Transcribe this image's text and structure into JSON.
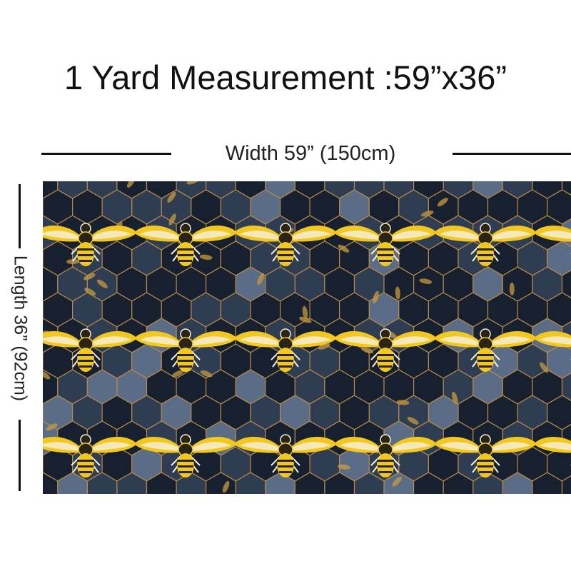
{
  "title": "1 Yard Measurement :59”x36”",
  "width_label": "Width 59”  (150cm)",
  "length_label": "Length 36”  (92cm)",
  "fabric": {
    "pattern": "honeycomb-bee-icon",
    "colors": {
      "background": "#1f2a3b",
      "hex_dark": "#17202e",
      "hex_mid": "#2f3d52",
      "hex_light": "#5b6d86",
      "hex_outline": "#b8894a",
      "bee_gold": "#f2c81e",
      "bee_white": "#f6efd8",
      "bee_dark": "#2a2416",
      "leaf_gold": "#c79a3d"
    }
  }
}
